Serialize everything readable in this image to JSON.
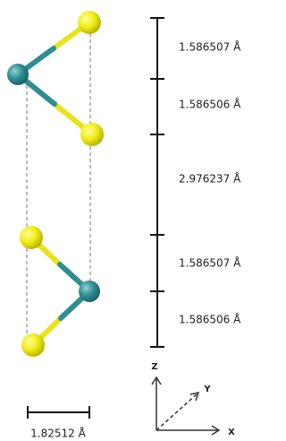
{
  "measurements": [
    "1.586507 Å",
    "1.586506 Å",
    "2.976237 Å",
    "1.586507 Å",
    "1.586506 Å"
  ],
  "scale_bar": "1.82512 Å",
  "axes": {
    "z": "Z",
    "y": "Y",
    "x": "X"
  }
}
